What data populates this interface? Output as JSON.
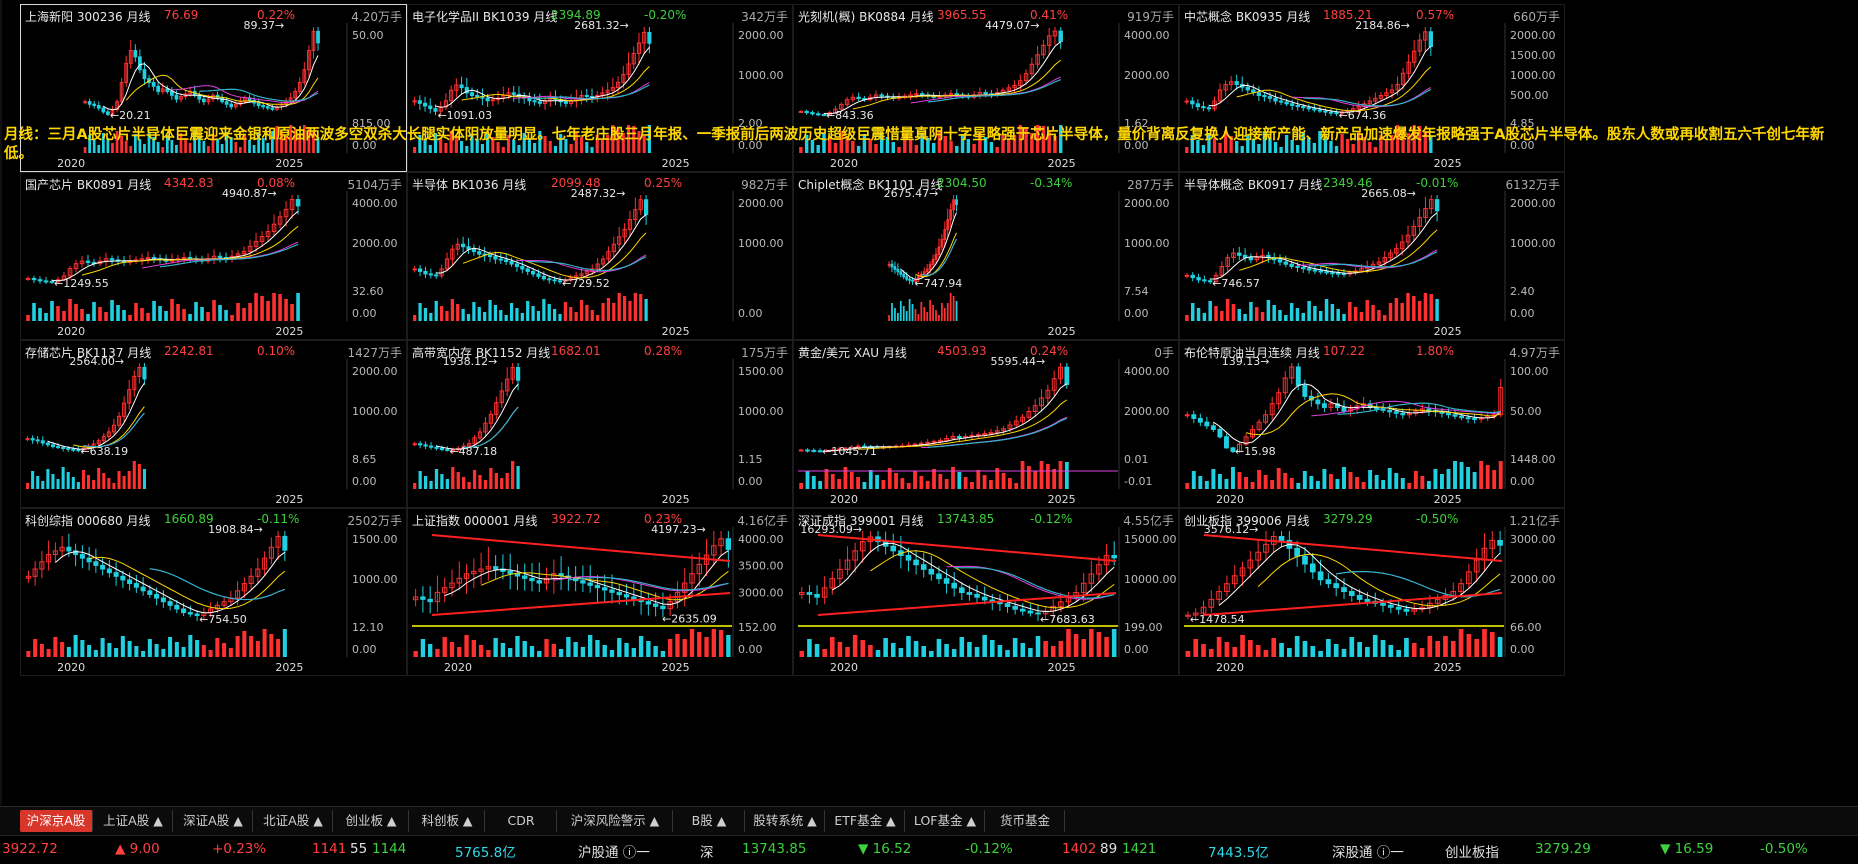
{
  "annotation": "月线：三月A股芯片半导体巨震迎来金银和原油两波多空双杀大长腿实体阴放量明显。七年老庄股三月年报、一季报前后两波历史超级巨震惜量真阴十字星略强于芯片半导体，量价背离反复换人迎接新产能、新产品加速爆发年报略强于A股芯片半导体。股东人数或再收割五六千创七年新低。",
  "colors": {
    "up": "#ff3030",
    "down": "#20d0e0",
    "ma5": "#ffffff",
    "ma10": "#ffd700",
    "ma20": "#e040e0",
    "ma60": "#30d030",
    "ma120": "#30b0e0",
    "trend": "#ff2020"
  },
  "panels": [
    {
      "name": "上海新阳",
      "code": "300236",
      "period": "月线",
      "price": "76.69",
      "pct": "0.22%",
      "pct_dir": "up",
      "vol": "4.20万手",
      "hi": "89.37",
      "lo": "20.21",
      "axis": [
        "50.00"
      ],
      "vaxis": [
        "815.00",
        "0.00"
      ],
      "years": [
        "2020",
        "2025"
      ],
      "start": 0.18,
      "end": 0.92,
      "series": [
        30,
        28,
        27,
        25,
        22,
        20,
        24,
        30,
        45,
        60,
        70,
        65,
        55,
        48,
        45,
        42,
        38,
        40,
        38,
        35,
        32,
        34,
        36,
        38,
        35,
        32,
        30,
        32,
        35,
        33,
        30,
        28,
        26,
        28,
        30,
        33,
        31,
        29,
        27,
        26,
        25,
        24,
        26,
        28,
        30,
        33,
        38,
        45,
        55,
        70,
        85,
        76
      ]
    },
    {
      "name": "电子化学品II",
      "code": "BK1039",
      "period": "月线",
      "price": "2394.89",
      "pct": "-0.20%",
      "pct_dir": "down",
      "vol": "342万手",
      "hi": "2681.32",
      "lo": "1091.03",
      "axis": [
        "2000.00",
        "1000.00"
      ],
      "vaxis": [
        "2.00",
        "0.00"
      ],
      "years": [
        "2025"
      ],
      "start": 0.0,
      "end": 0.75,
      "series": [
        1300,
        1250,
        1200,
        1150,
        1100,
        1180,
        1300,
        1500,
        1600,
        1550,
        1450,
        1400,
        1380,
        1350,
        1300,
        1320,
        1350,
        1400,
        1450,
        1420,
        1380,
        1350,
        1300,
        1280,
        1250,
        1300,
        1350,
        1320,
        1280,
        1250,
        1300,
        1350,
        1400,
        1380,
        1350,
        1400,
        1450,
        1500,
        1550,
        1650,
        1800,
        2000,
        2200,
        2400,
        2600,
        2394
      ]
    },
    {
      "name": "光刻机(概)",
      "code": "BK0884",
      "period": "月线",
      "price": "3965.55",
      "pct": "0.41%",
      "pct_dir": "up",
      "vol": "919万手",
      "hi": "4479.07",
      "lo": "843.36",
      "axis": [
        "4000.00",
        "2000.00"
      ],
      "vaxis": [
        "1.62",
        "0.00"
      ],
      "years": [
        "2020",
        "2025"
      ],
      "start": 0.0,
      "end": 0.83,
      "series": [
        1000,
        950,
        900,
        870,
        850,
        950,
        1100,
        1300,
        1500,
        1600,
        1550,
        1500,
        1600,
        1700,
        1650,
        1600,
        1550,
        1600,
        1650,
        1700,
        1750,
        1700,
        1650,
        1600,
        1650,
        1700,
        1750,
        1700,
        1650,
        1600,
        1700,
        1800,
        1750,
        1700,
        1800,
        1900,
        2000,
        2100,
        2300,
        2600,
        3000,
        3400,
        3800,
        4200,
        4400,
        3965
      ]
    },
    {
      "name": "中芯概念",
      "code": "BK0935",
      "period": "月线",
      "price": "1885.21",
      "pct": "0.57%",
      "pct_dir": "up",
      "vol": "660万手",
      "hi": "2184.86",
      "lo": "674.36",
      "axis": [
        "2000.00",
        "1500.00",
        "1000.00",
        "500.00"
      ],
      "vaxis": [
        "4.85",
        "0.00"
      ],
      "years": [
        "2025"
      ],
      "start": 0.0,
      "end": 0.78,
      "series": [
        900,
        850,
        800,
        780,
        760,
        900,
        1100,
        1200,
        1250,
        1200,
        1150,
        1100,
        1050,
        1000,
        980,
        950,
        900,
        880,
        850,
        820,
        800,
        780,
        760,
        740,
        720,
        700,
        690,
        680,
        700,
        720,
        760,
        800,
        850,
        900,
        950,
        1000,
        1050,
        1100,
        1200,
        1400,
        1600,
        1800,
        2000,
        2150,
        1885
      ]
    },
    {
      "name": "国产芯片",
      "code": "BK0891",
      "period": "月线",
      "price": "4342.83",
      "pct": "0.08%",
      "pct_dir": "up",
      "vol": "5104万手",
      "hi": "4940.87",
      "lo": "1249.55",
      "axis": [
        "4000.00",
        "2000.00"
      ],
      "vaxis": [
        "32.60",
        "0.00"
      ],
      "years": [
        "2020",
        "2025"
      ],
      "start": 0.0,
      "end": 0.86,
      "series": [
        1400,
        1350,
        1300,
        1280,
        1260,
        1350,
        1500,
        1800,
        2000,
        2100,
        2050,
        2000,
        2100,
        2200,
        2150,
        2100,
        2050,
        2100,
        2150,
        2200,
        2250,
        2200,
        2150,
        2100,
        2150,
        2200,
        2250,
        2200,
        2150,
        2100,
        2200,
        2300,
        2250,
        2200,
        2300,
        2400,
        2500,
        2700,
        2900,
        3100,
        3300,
        3600,
        3900,
        4200,
        4600,
        4342
      ]
    },
    {
      "name": "半导体",
      "code": "BK1036",
      "period": "月线",
      "price": "2099.48",
      "pct": "0.25%",
      "pct_dir": "up",
      "vol": "982万手",
      "hi": "2487.32",
      "lo": "729.52",
      "axis": [
        "2000.00",
        "1000.00"
      ],
      "vaxis": [
        "",
        "0.00"
      ],
      "years": [
        "2025"
      ],
      "start": 0.0,
      "end": 0.74,
      "series": [
        1000,
        950,
        900,
        880,
        860,
        1000,
        1200,
        1400,
        1500,
        1450,
        1400,
        1350,
        1300,
        1280,
        1250,
        1200,
        1180,
        1150,
        1100,
        1050,
        1000,
        950,
        900,
        850,
        800,
        780,
        760,
        750,
        780,
        820,
        860,
        900,
        950,
        1000,
        1100,
        1200,
        1350,
        1500,
        1650,
        1800,
        2000,
        2200,
        2400,
        2099
      ]
    },
    {
      "name": "Chiplet概念",
      "code": "BK1101",
      "period": "月线",
      "price": "2304.50",
      "pct": "-0.34%",
      "pct_dir": "down",
      "vol": "287万手",
      "hi": "2675.47",
      "lo": "747.94",
      "axis": [
        "2000.00",
        "1000.00"
      ],
      "vaxis": [
        "7.54",
        "0.00"
      ],
      "years": [
        "2025"
      ],
      "start": 0.28,
      "end": 0.5,
      "series": [
        1100,
        1050,
        1000,
        950,
        900,
        850,
        800,
        780,
        760,
        800,
        850,
        900,
        950,
        1000,
        1100,
        1200,
        1300,
        1450,
        1600,
        1800,
        2000,
        2200,
        2400,
        2304
      ]
    },
    {
      "name": "半导体概念",
      "code": "BK0917",
      "period": "月线",
      "price": "2349.46",
      "pct": "-0.01%",
      "pct_dir": "down",
      "vol": "6132万手",
      "hi": "2665.08",
      "lo": "746.57",
      "axis": [
        "2000.00",
        "1000.00"
      ],
      "vaxis": [
        "2.40",
        "0.00"
      ],
      "years": [
        "2025"
      ],
      "start": 0.0,
      "end": 0.8,
      "series": [
        900,
        850,
        800,
        780,
        760,
        900,
        1100,
        1300,
        1400,
        1350,
        1300,
        1250,
        1300,
        1350,
        1300,
        1250,
        1200,
        1150,
        1100,
        1080,
        1050,
        1020,
        1000,
        980,
        960,
        950,
        940,
        930,
        960,
        1000,
        1050,
        1100,
        1150,
        1200,
        1300,
        1400,
        1500,
        1650,
        1800,
        2000,
        2200,
        2400,
        2600,
        2349
      ]
    },
    {
      "name": "存储芯片",
      "code": "BK1137",
      "period": "月线",
      "price": "2242.81",
      "pct": "0.10%",
      "pct_dir": "up",
      "vol": "1427万手",
      "hi": "2564.00",
      "lo": "638.19",
      "axis": [
        "2000.00",
        "1000.00"
      ],
      "vaxis": [
        "8.65",
        "0.00"
      ],
      "years": [
        "2025"
      ],
      "start": 0.0,
      "end": 0.38,
      "series": [
        900,
        870,
        850,
        800,
        760,
        720,
        700,
        680,
        660,
        650,
        640,
        680,
        720,
        780,
        850,
        950,
        1050,
        1200,
        1400,
        1700,
        2000,
        2300,
        2500,
        2242
      ]
    },
    {
      "name": "高带宽内存",
      "code": "BK1152",
      "period": "月线",
      "price": "1682.01",
      "pct": "0.28%",
      "pct_dir": "up",
      "vol": "175万手",
      "hi": "1938.12",
      "lo": "487.18",
      "axis": [
        "1500.00",
        "1000.00"
      ],
      "vaxis": [
        "1.15",
        "0.00"
      ],
      "years": [
        "2025"
      ],
      "start": 0.0,
      "end": 0.34,
      "series": [
        600,
        580,
        560,
        540,
        520,
        500,
        490,
        500,
        520,
        560,
        600,
        700,
        800,
        950,
        1100,
        1300,
        1500,
        1700,
        1900,
        1682
      ]
    },
    {
      "name": "黄金/美元",
      "code": "XAU",
      "period": "月线",
      "price": "4503.93",
      "pct": "0.24%",
      "pct_dir": "up",
      "vol": "0手",
      "hi": "5595.44",
      "lo": "1045.71",
      "axis": [
        "4000.00",
        "2000.00"
      ],
      "vaxis": [
        "0.01",
        "-0.01"
      ],
      "years": [
        "2020",
        "2025"
      ],
      "start": 0.0,
      "end": 0.85,
      "series": [
        1100,
        1080,
        1060,
        1050,
        1070,
        1100,
        1150,
        1200,
        1250,
        1300,
        1280,
        1260,
        1240,
        1250,
        1280,
        1300,
        1320,
        1350,
        1400,
        1450,
        1500,
        1550,
        1600,
        1700,
        1800,
        1750,
        1800,
        1850,
        1900,
        1950,
        2000,
        2100,
        2200,
        2400,
        2600,
        2800,
        3100,
        3400,
        3800,
        4200,
        4800,
        5400,
        4503
      ]
    },
    {
      "name": "布伦特原油当月连续",
      "code": "",
      "period": "月线",
      "price": "107.22",
      "pct": "1.80%",
      "pct_dir": "up",
      "vol": "4.97万手",
      "hi": "139.13",
      "lo": "15.98",
      "axis": [
        "100.00",
        "50.00"
      ],
      "vaxis": [
        "1448.00",
        "0.00"
      ],
      "years": [
        "2020",
        "2025"
      ],
      "start": 0.0,
      "end": 1.0,
      "series": [
        70,
        65,
        60,
        55,
        50,
        40,
        25,
        20,
        30,
        40,
        50,
        60,
        70,
        85,
        100,
        120,
        135,
        110,
        95,
        90,
        85,
        80,
        85,
        80,
        75,
        78,
        82,
        85,
        80,
        78,
        76,
        74,
        72,
        70,
        72,
        75,
        78,
        76,
        74,
        72,
        70,
        68,
        66,
        65,
        64,
        66,
        68,
        70,
        107
      ]
    },
    {
      "name": "科创综指",
      "code": "000680",
      "period": "月线",
      "price": "1660.89",
      "pct": "-0.11%",
      "pct_dir": "down",
      "vol": "2502万手",
      "hi": "1908.84",
      "lo": "754.50",
      "axis": [
        "1500.00",
        "1000.00"
      ],
      "vaxis": [
        "12.10",
        "0.00"
      ],
      "years": [
        "2020",
        "2025"
      ],
      "start": 0.0,
      "end": 0.82,
      "series": [
        1300,
        1400,
        1500,
        1600,
        1650,
        1700,
        1650,
        1600,
        1550,
        1500,
        1450,
        1400,
        1350,
        1300,
        1250,
        1200,
        1150,
        1100,
        1050,
        1000,
        950,
        900,
        850,
        800,
        780,
        760,
        800,
        850,
        900,
        950,
        1000,
        1100,
        1200,
        1300,
        1400,
        1550,
        1700,
        1850,
        1660
      ]
    },
    {
      "name": "上证指数",
      "code": "000001",
      "period": "月线",
      "price": "3922.72",
      "pct": "0.23%",
      "pct_dir": "up",
      "vol": "4.16亿手",
      "hi": "4197.23",
      "lo": "2635.09",
      "axis": [
        "4000.00",
        "3500.00",
        "3000.00"
      ],
      "vaxis": [
        "152.00",
        "0.00"
      ],
      "years": [
        "2020",
        "2025"
      ],
      "start": 0.0,
      "end": 1.0,
      "series": [
        2900,
        2850,
        2800,
        3000,
        3100,
        3200,
        3300,
        3400,
        3450,
        3500,
        3550,
        3500,
        3450,
        3400,
        3350,
        3300,
        3250,
        3200,
        3300,
        3400,
        3350,
        3300,
        3250,
        3200,
        3150,
        3100,
        3050,
        3000,
        2950,
        2900,
        2850,
        2800,
        2750,
        2700,
        2650,
        2800,
        3000,
        3200,
        3400,
        3600,
        3800,
        4000,
        4150,
        3922
      ]
    },
    {
      "name": "深证成指",
      "code": "399001",
      "period": "月线",
      "price": "13743.85",
      "pct": "-0.12%",
      "pct_dir": "down",
      "vol": "4.55亿手",
      "hi": "16293.09",
      "lo": "7683.63",
      "axis": [
        "15000.00",
        "10000.00"
      ],
      "vaxis": [
        "199.00",
        "0.00"
      ],
      "years": [
        "2020",
        "2025"
      ],
      "start": 0.0,
      "end": 1.0,
      "series": [
        10000,
        9800,
        9500,
        10500,
        11500,
        12500,
        13500,
        14500,
        15500,
        16000,
        15500,
        15000,
        14500,
        14000,
        13500,
        13000,
        12500,
        12000,
        11500,
        11000,
        10500,
        10000,
        9800,
        9500,
        9200,
        9000,
        8800,
        8500,
        8200,
        8000,
        7800,
        7700,
        8000,
        8500,
        9000,
        9500,
        10000,
        11000,
        12000,
        13000,
        14000,
        13743
      ]
    },
    {
      "name": "创业板指",
      "code": "399006",
      "period": "月线",
      "price": "3279.29",
      "pct": "-0.50%",
      "pct_dir": "down",
      "vol": "1.21亿手",
      "hi": "3576.12",
      "lo": "1478.54",
      "axis": [
        "3000.00",
        "2000.00"
      ],
      "vaxis": [
        "66.00",
        "0.00"
      ],
      "years": [
        "2020",
        "2025"
      ],
      "start": 0.0,
      "end": 1.0,
      "series": [
        1500,
        1550,
        1700,
        1900,
        2100,
        2300,
        2500,
        2700,
        2900,
        3100,
        3300,
        3500,
        3400,
        3200,
        3000,
        2800,
        2600,
        2400,
        2300,
        2200,
        2100,
        2000,
        1900,
        1850,
        1800,
        1750,
        1700,
        1650,
        1600,
        1650,
        1700,
        1800,
        1900,
        2000,
        2100,
        2300,
        2600,
        2900,
        3200,
        3400,
        3279
      ]
    }
  ],
  "tabs": [
    {
      "label": "沪深京A股 ▲",
      "active": true
    },
    {
      "label": "上证A股 ▲",
      "active": false
    },
    {
      "label": "深证A股 ▲",
      "active": false
    },
    {
      "label": "北证A股 ▲",
      "active": false
    },
    {
      "label": "创业板 ▲",
      "active": false
    },
    {
      "label": "科创板 ▲",
      "active": false
    },
    {
      "label": "CDR",
      "active": false
    },
    {
      "label": "沪深风险警示 ▲",
      "active": false
    },
    {
      "label": "B股 ▲",
      "active": false
    },
    {
      "label": "股转系统 ▲",
      "active": false
    },
    {
      "label": "ETF基金 ▲",
      "active": false
    },
    {
      "label": "LOF基金 ▲",
      "active": false
    },
    {
      "label": "货币基金",
      "active": false
    }
  ],
  "status": {
    "sh_value": "3922.72",
    "sh_change": "▲ 9.00",
    "sh_pct": "+0.23%",
    "sh_up": "1141",
    "sh_flat": "55",
    "sh_down": "1144",
    "sh_amount": "5765.8亿",
    "hgt_label": "沪股通",
    "hgt_sep": "一",
    "sz_label": "深",
    "sz_value": "13743.85",
    "sz_change": "▼ 16.52",
    "sz_pct": "-0.12%",
    "sz_up": "1402",
    "sz_flat": "89",
    "sz_down": "1421",
    "sz_amount": "7443.5亿",
    "sgt_label": "深股通",
    "sgt_sep": "一",
    "cyb_label": "创业板指",
    "cyb_value": "3279.29",
    "cyb_change": "▼ 16.59",
    "cyb_pct": "-0.50%"
  }
}
